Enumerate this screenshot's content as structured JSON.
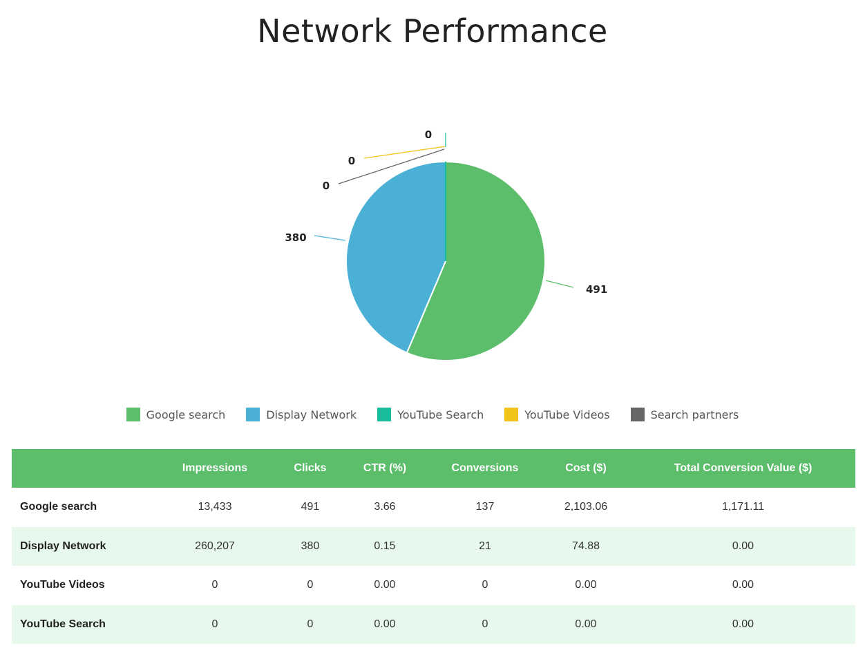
{
  "title": "Network Performance",
  "chart_data": {
    "type": "pie",
    "title": "Network Performance",
    "slices": [
      {
        "name": "Google search",
        "value": 491,
        "color": "#5cbe6b"
      },
      {
        "name": "Display Network",
        "value": 380,
        "color": "#4bb0d5"
      },
      {
        "name": "Search partners",
        "value": 0,
        "color": "#666666"
      },
      {
        "name": "YouTube Videos",
        "value": 0,
        "color": "#f0c419"
      },
      {
        "name": "YouTube Search",
        "value": 0,
        "color": "#1abc9c"
      }
    ],
    "labels": [
      "491",
      "380",
      "0",
      "0",
      "0"
    ],
    "legend": [
      "Google search",
      "Display Network",
      "YouTube Search",
      "YouTube Videos",
      "Search partners"
    ],
    "legend_position": "bottom"
  },
  "legend": [
    {
      "label": "Google search",
      "color": "#5cbe6b"
    },
    {
      "label": "Display Network",
      "color": "#4bb0d5"
    },
    {
      "label": "YouTube Search",
      "color": "#1abc9c"
    },
    {
      "label": "YouTube Videos",
      "color": "#f0c419"
    },
    {
      "label": "Search partners",
      "color": "#666666"
    }
  ],
  "table": {
    "headers": [
      "",
      "Impressions",
      "Clicks",
      "CTR (%)",
      "Conversions",
      "Cost ($)",
      "Total Conversion Value ($)"
    ],
    "rows": [
      [
        "Google search",
        "13,433",
        "491",
        "3.66",
        "137",
        "2,103.06",
        "1,171.11"
      ],
      [
        "Display Network",
        "260,207",
        "380",
        "0.15",
        "21",
        "74.88",
        "0.00"
      ],
      [
        "YouTube Videos",
        "0",
        "0",
        "0.00",
        "0",
        "0.00",
        "0.00"
      ],
      [
        "YouTube Search",
        "0",
        "0",
        "0.00",
        "0",
        "0.00",
        "0.00"
      ]
    ]
  }
}
